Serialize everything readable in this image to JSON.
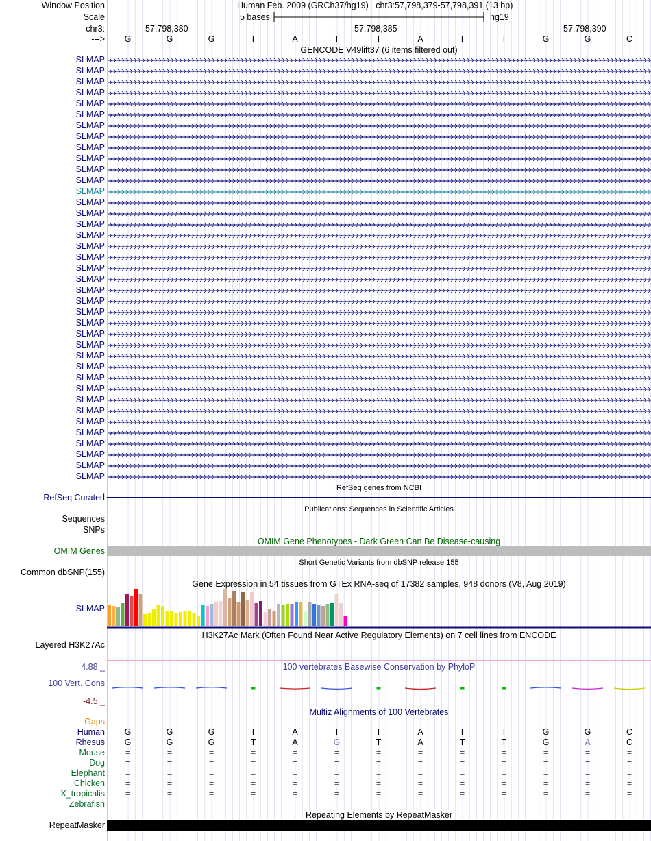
{
  "header": {
    "window_position_label": "Window Position",
    "scale_label": "Scale",
    "chrom_label": "chr3:",
    "strand_label": "--->",
    "assembly_title": "Human Feb. 2009 (GRCh37/hg19)",
    "position": "chr3:57,798,379-57,798,391 (13 bp)",
    "scale_text": "5 bases",
    "db": "hg19",
    "ticks": [
      "57,798,380",
      "57,798,385",
      "57,798,390"
    ]
  },
  "bases": [
    "G",
    "G",
    "G",
    "T",
    "A",
    "T",
    "T",
    "A",
    "T",
    "T",
    "G",
    "G",
    "C"
  ],
  "gencode": {
    "title": "GENCODE V49lift37 (6 items filtered out)",
    "gene_label": "SLMAP",
    "row_count": 39,
    "highlight_row": 12
  },
  "refseq": {
    "title": "RefSeq genes from NCBI",
    "label": "RefSeq Curated"
  },
  "publications": {
    "title": "Publications: Sequences in Scientific Articles",
    "label_line1": "Sequences",
    "label_line2": "SNPs"
  },
  "omim": {
    "title": "OMIM Gene Phenotypes - Dark Green Can Be Disease-causing",
    "label": "OMIM Genes"
  },
  "dbsnp": {
    "title": "Short Genetic Variants from dbSNP release 155",
    "label": "Common dbSNP(155)"
  },
  "gtex": {
    "title": "Gene Expression in 54 tissues from GTEx RNA-seq of 17382 samples, 948 donors (V8, Aug 2019)",
    "label": "SLMAP",
    "bars": [
      {
        "v": 0.58,
        "c": "#ff9a2e"
      },
      {
        "v": 0.55,
        "c": "#ffb347"
      },
      {
        "v": 0.5,
        "c": "#8fbc8f"
      },
      {
        "v": 0.62,
        "c": "#6aa84f"
      },
      {
        "v": 0.88,
        "c": "#a0185a"
      },
      {
        "v": 0.82,
        "c": "#e34a4a"
      },
      {
        "v": 0.98,
        "c": "#ff0000"
      },
      {
        "v": 0.88,
        "c": "#c8a280"
      },
      {
        "v": 0.33,
        "c": "#eeee00"
      },
      {
        "v": 0.37,
        "c": "#eeee00"
      },
      {
        "v": 0.45,
        "c": "#eeee00"
      },
      {
        "v": 0.58,
        "c": "#eeee00"
      },
      {
        "v": 0.55,
        "c": "#eeee00"
      },
      {
        "v": 0.42,
        "c": "#eeee00"
      },
      {
        "v": 0.4,
        "c": "#eeee00"
      },
      {
        "v": 0.35,
        "c": "#eeee00"
      },
      {
        "v": 0.38,
        "c": "#eeee00"
      },
      {
        "v": 0.4,
        "c": "#eeee00"
      },
      {
        "v": 0.4,
        "c": "#eeee00"
      },
      {
        "v": 0.35,
        "c": "#eeee00"
      },
      {
        "v": 0.28,
        "c": "#eeee00"
      },
      {
        "v": 0.58,
        "c": "#00cccc"
      },
      {
        "v": 0.55,
        "c": "#ff99cc"
      },
      {
        "v": 0.6,
        "c": "#99bbdd"
      },
      {
        "v": 0.66,
        "c": "#f3ccc2"
      },
      {
        "v": 0.68,
        "c": "#f2d5c9"
      },
      {
        "v": 0.98,
        "c": "#dbb5a0"
      },
      {
        "v": 0.74,
        "c": "#d2a07a"
      },
      {
        "v": 0.95,
        "c": "#ab8062"
      },
      {
        "v": 0.66,
        "c": "#d09a70"
      },
      {
        "v": 0.92,
        "c": "#8e6a4a"
      },
      {
        "v": 0.7,
        "c": "#ddb08f"
      },
      {
        "v": 0.9,
        "c": "#f0c9d0"
      },
      {
        "v": 0.62,
        "c": "#a3418a"
      },
      {
        "v": 0.68,
        "c": "#7a1e7a"
      },
      {
        "v": 0.38,
        "c": "#f5cfd9"
      },
      {
        "v": 0.45,
        "c": "#c8a0a0"
      },
      {
        "v": 0.4,
        "c": "#d09a70"
      },
      {
        "v": 0.6,
        "c": "#b8b8b8"
      },
      {
        "v": 0.58,
        "c": "#99cc33"
      },
      {
        "v": 0.6,
        "c": "#aadd00"
      },
      {
        "v": 0.6,
        "c": "#9977dd"
      },
      {
        "v": 0.64,
        "c": "#3399ff"
      },
      {
        "v": 0.64,
        "c": "#ddbb55"
      },
      {
        "v": 0.42,
        "c": "#ccffcc"
      },
      {
        "v": 0.66,
        "c": "#aaaaaa"
      },
      {
        "v": 0.6,
        "c": "#3377dd"
      },
      {
        "v": 0.58,
        "c": "#6699cc"
      },
      {
        "v": 0.55,
        "c": "#c8a088"
      },
      {
        "v": 0.6,
        "c": "#8fbc8f"
      },
      {
        "v": 0.62,
        "c": "#009966"
      },
      {
        "v": 0.85,
        "c": "#f2d0d0"
      },
      {
        "v": 0.62,
        "c": "#e8d4d4"
      },
      {
        "v": 0.28,
        "c": "#ff00cc"
      }
    ]
  },
  "h3k27ac": {
    "title": "H3K27Ac Mark (Often Found Near Active Regulatory Elements) on 7 cell lines from ENCODE",
    "label": "Layered H3K27Ac"
  },
  "conservation": {
    "title": "100 vertebrates Basewise Conservation by PhyloP",
    "label": "100 Vert. Cons",
    "max_label": "4.88 _",
    "min_label": "-4.5 _",
    "scores": [
      0.6,
      0.4,
      0.5,
      0.3,
      -0.2,
      -0.9,
      0.2,
      -1.3,
      0.2,
      0.2,
      0.3,
      -0.9,
      -1.6
    ],
    "colors": [
      "#3050e0",
      "#3050e0",
      "#3050e0",
      "#00bb00",
      "#cc2020",
      "#3050e0",
      "#00bb00",
      "#cc2020",
      "#00bb00",
      "#00bb00",
      "#3050e0",
      "#cc20cc",
      "#cccc00"
    ],
    "ylim": [
      -4.5,
      4.88
    ]
  },
  "multiz": {
    "title": "Multiz Alignments of 100 Vertebrates",
    "gaps_label": "Gaps",
    "species": [
      {
        "name": "Human",
        "seq": [
          "G",
          "G",
          "G",
          "T",
          "A",
          "T",
          "T",
          "A",
          "T",
          "T",
          "G",
          "G",
          "C"
        ]
      },
      {
        "name": "Rhesus",
        "seq": [
          "G",
          "G",
          "G",
          "T",
          "A",
          "G",
          "T",
          "A",
          "T",
          "T",
          "G",
          "A",
          "C"
        ]
      },
      {
        "name": "Mouse",
        "seq": [
          "=",
          "=",
          "=",
          "=",
          "=",
          "=",
          "=",
          "=",
          "=",
          "=",
          "=",
          "=",
          "="
        ]
      },
      {
        "name": "Dog",
        "seq": [
          "=",
          "=",
          "=",
          "=",
          "=",
          "=",
          "=",
          "=",
          "=",
          "=",
          "=",
          "=",
          "="
        ]
      },
      {
        "name": "Elephant",
        "seq": [
          "=",
          "=",
          "=",
          "=",
          "=",
          "=",
          "=",
          "=",
          "=",
          "=",
          "=",
          "=",
          "="
        ]
      },
      {
        "name": "Chicken",
        "seq": [
          "=",
          "=",
          "=",
          "=",
          "=",
          "=",
          "=",
          "=",
          "=",
          "=",
          "=",
          "=",
          "="
        ]
      },
      {
        "name": "X_tropicalis",
        "seq": [
          "=",
          "=",
          "=",
          "=",
          "=",
          "=",
          "=",
          "=",
          "=",
          "=",
          "=",
          "=",
          "="
        ]
      },
      {
        "name": "Zebrafish",
        "seq": [
          "=",
          "=",
          "=",
          "=",
          "=",
          "=",
          "=",
          "=",
          "=",
          "=",
          "=",
          "=",
          "="
        ]
      }
    ],
    "mismatch_color": "#7777bb"
  },
  "repeatmasker": {
    "title": "Repeating Elements by RepeatMasker",
    "label": "RepeatMasker"
  },
  "colors": {
    "navy": "#0c0c78",
    "highlight": "#13829a",
    "grid": "#c8c8e8"
  }
}
